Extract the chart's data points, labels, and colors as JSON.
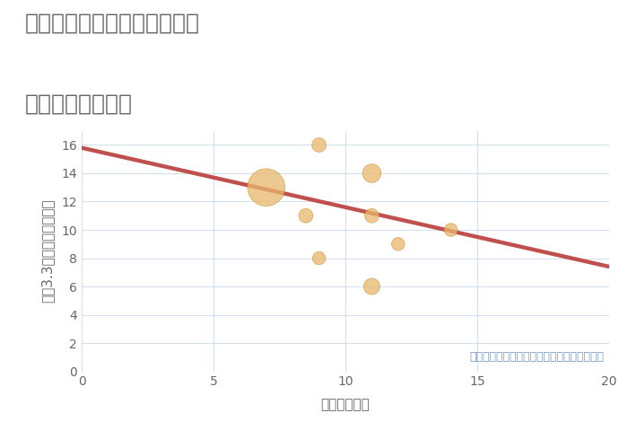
{
  "title_line1": "三重県四日市市三ツ谷東町の",
  "title_line2": "駅距離別土地価格",
  "xlabel": "駅距離（分）",
  "ylabel": "坪（3.3㎡）単価（万円）",
  "annotation": "円の大きさは、取引のあった物件面積を示す",
  "scatter_x": [
    7.0,
    8.5,
    9.0,
    9.0,
    11.0,
    11.0,
    11.0,
    12.0,
    14.0
  ],
  "scatter_y": [
    13.0,
    11.0,
    8.0,
    16.0,
    14.0,
    11.0,
    6.0,
    9.0,
    10.0
  ],
  "scatter_size": [
    900,
    130,
    110,
    130,
    220,
    130,
    170,
    110,
    110
  ],
  "bubble_color": "#e8b86d",
  "bubble_alpha": 0.75,
  "bubble_edge_color": "#c8942a",
  "bubble_edge_width": 0.5,
  "trend_x": [
    0,
    20
  ],
  "trend_y": [
    15.8,
    7.4
  ],
  "trend_color": "#c0504d",
  "trend_linewidth": 3.2,
  "xlim": [
    0,
    20
  ],
  "ylim": [
    0,
    17
  ],
  "yticks": [
    0,
    2,
    4,
    6,
    8,
    10,
    12,
    14,
    16
  ],
  "xticks": [
    0,
    5,
    10,
    15,
    20
  ],
  "grid_color": "#b8cce4",
  "grid_alpha": 0.6,
  "bg_color": "#ffffff",
  "title_color": "#666666",
  "axis_label_color": "#666666",
  "tick_color": "#666666",
  "annotation_color": "#7a9bbf",
  "title_fontsize": 18,
  "axis_label_fontsize": 11,
  "tick_fontsize": 10,
  "annotation_fontsize": 9
}
